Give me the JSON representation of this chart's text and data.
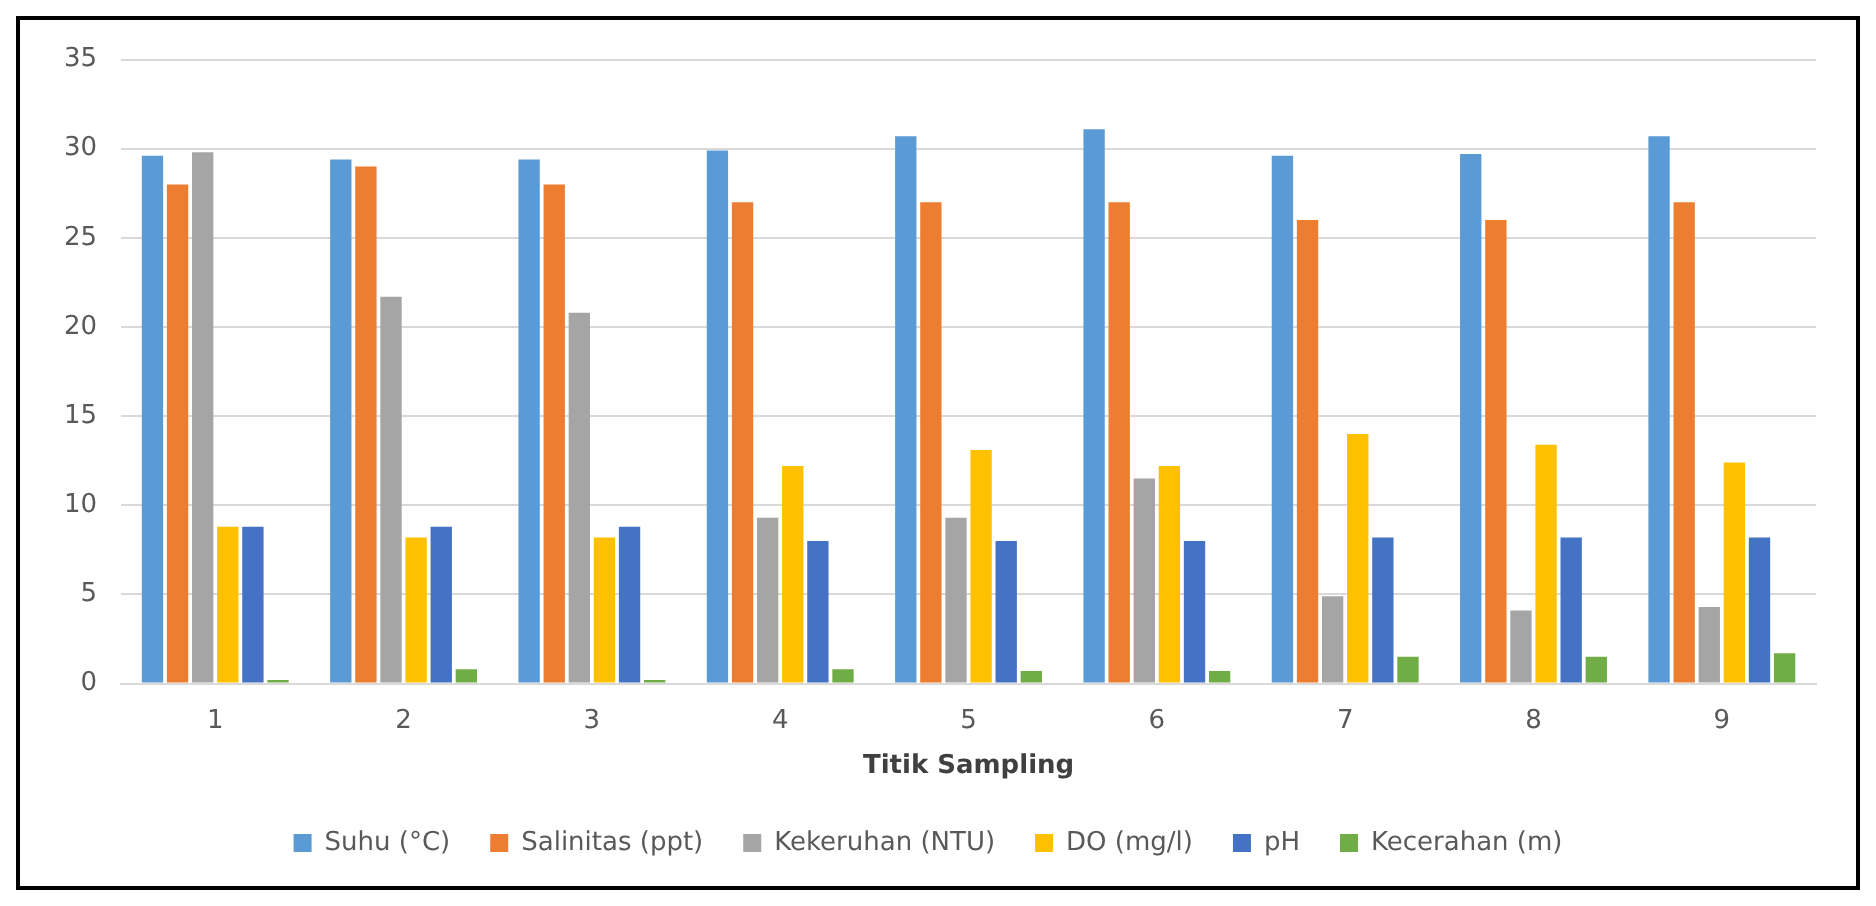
{
  "chart_data": {
    "type": "bar",
    "xlabel": "Titik Sampling",
    "categories": [
      "1",
      "2",
      "3",
      "4",
      "5",
      "6",
      "7",
      "8",
      "9"
    ],
    "series": [
      {
        "name": "Suhu (°C)",
        "color": "#5b9bd5",
        "values": [
          29.6,
          29.4,
          29.4,
          29.9,
          30.7,
          31.1,
          29.6,
          29.7,
          30.7
        ]
      },
      {
        "name": "Salinitas (ppt)",
        "color": "#ed7d31",
        "values": [
          28,
          29,
          28,
          27,
          27,
          27,
          26,
          26,
          27
        ]
      },
      {
        "name": "Kekeruhan (NTU)",
        "color": "#a5a5a5",
        "values": [
          29.8,
          21.7,
          20.8,
          9.3,
          9.3,
          11.5,
          4.9,
          4.1,
          4.3
        ]
      },
      {
        "name": "DO (mg/l)",
        "color": "#ffc000",
        "values": [
          8.8,
          8.2,
          8.2,
          12.2,
          13.1,
          12.2,
          14.0,
          13.4,
          12.4
        ]
      },
      {
        "name": "pH",
        "color": "#4472c4",
        "values": [
          8.8,
          8.8,
          8.8,
          8.0,
          8.0,
          8.0,
          8.2,
          8.2,
          8.2
        ]
      },
      {
        "name": "Kecerahan (m)",
        "color": "#70ad47",
        "values": [
          0.2,
          0.8,
          0.2,
          0.8,
          0.7,
          0.7,
          1.5,
          1.5,
          1.7
        ]
      }
    ],
    "ylim": [
      0,
      35
    ],
    "yticks": [
      0,
      5,
      10,
      15,
      20,
      25,
      30,
      35
    ],
    "grid": "y",
    "legend": "bottom"
  }
}
